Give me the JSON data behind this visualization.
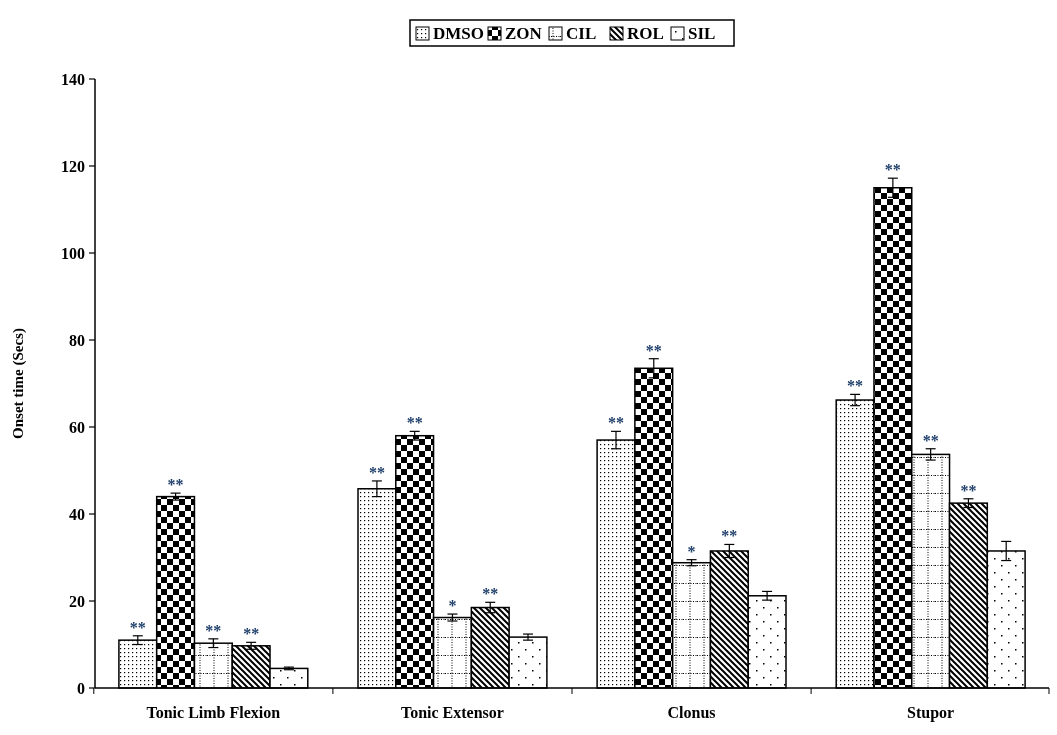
{
  "chart_data": {
    "type": "bar",
    "ylabel": "Onset time (Secs)",
    "categories": [
      "Tonic Limb Flexion",
      "Tonic Extensor",
      "Clonus",
      "Stupor"
    ],
    "series": [
      {
        "name": "DMSO",
        "color": "#000000",
        "values": [
          11,
          45.8,
          57,
          66.2
        ],
        "errors": [
          1,
          1.8,
          2,
          1.3
        ],
        "value_labels": [
          "**",
          "**",
          "**",
          "**"
        ]
      },
      {
        "name": "ZON",
        "color": "#000000",
        "values": [
          44,
          58,
          73.5,
          115
        ],
        "errors": [
          0.8,
          1,
          2.2,
          2.2
        ],
        "value_labels": [
          "**",
          "**",
          "**",
          "**"
        ]
      },
      {
        "name": "CIL",
        "color": "#000000",
        "values": [
          10.3,
          16.2,
          28.8,
          53.7
        ],
        "errors": [
          1,
          0.8,
          0.7,
          1.3
        ],
        "value_labels": [
          "**",
          "*",
          "*",
          "**"
        ]
      },
      {
        "name": "ROL",
        "color": "#000000",
        "values": [
          9.7,
          18.5,
          31.5,
          42.5
        ],
        "errors": [
          0.8,
          1.2,
          1.5,
          1
        ],
        "value_labels": [
          "**",
          "**",
          "**",
          "**"
        ]
      },
      {
        "name": "SIL",
        "color": "#000000",
        "values": [
          4.5,
          11.7,
          21.2,
          31.5
        ],
        "errors": [
          0.3,
          0.7,
          1,
          2.2
        ],
        "value_labels": [
          null,
          null,
          null,
          null
        ]
      }
    ],
    "ylim": [
      0,
      140
    ],
    "yticks": [
      0,
      20,
      40,
      60,
      80,
      100,
      120,
      140
    ],
    "grid": false,
    "legend": "top"
  }
}
